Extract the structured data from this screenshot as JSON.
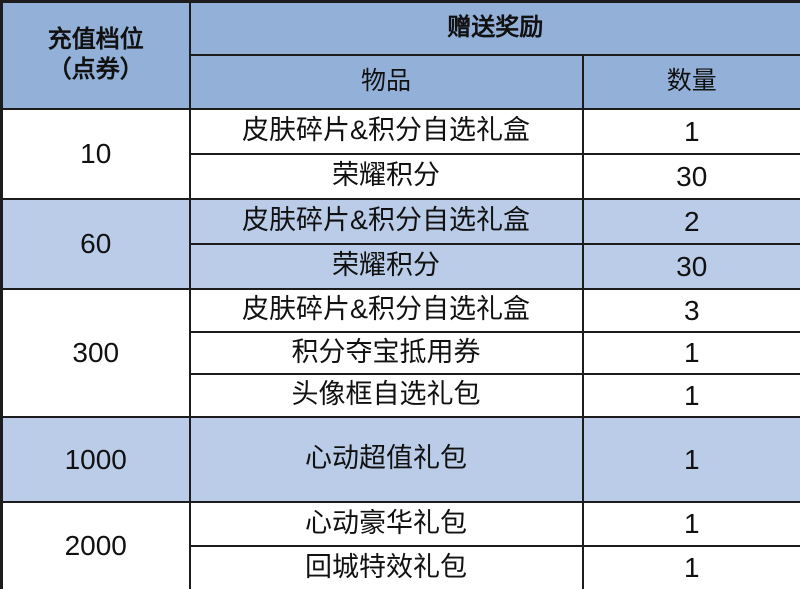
{
  "table": {
    "header": {
      "tier_line1": "充值档位",
      "tier_line2": "（点券）",
      "gift_header": "赠送奖励",
      "item_header": "物品",
      "qty_header": "数量"
    },
    "groups": [
      {
        "tier": "10",
        "highlight": false,
        "rewards": [
          {
            "item": "皮肤碎片&积分自选礼盒",
            "qty": "1"
          },
          {
            "item": "荣耀积分",
            "qty": "30"
          }
        ]
      },
      {
        "tier": "60",
        "highlight": true,
        "rewards": [
          {
            "item": "皮肤碎片&积分自选礼盒",
            "qty": "2"
          },
          {
            "item": "荣耀积分",
            "qty": "30"
          }
        ]
      },
      {
        "tier": "300",
        "highlight": false,
        "rewards": [
          {
            "item": "皮肤碎片&积分自选礼盒",
            "qty": "3"
          },
          {
            "item": "积分夺宝抵用券",
            "qty": "1"
          },
          {
            "item": "头像框自选礼包",
            "qty": "1"
          }
        ]
      },
      {
        "tier": "1000",
        "highlight": true,
        "rewards": [
          {
            "item": "心动超值礼包",
            "qty": "1"
          }
        ]
      },
      {
        "tier": "2000",
        "highlight": false,
        "rewards": [
          {
            "item": "心动豪华礼包",
            "qty": "1"
          },
          {
            "item": "回城特效礼包",
            "qty": "1"
          }
        ]
      }
    ],
    "colors": {
      "header_bg": "#93B1D8",
      "highlight_bg": "#BACCE8",
      "row_bg": "#FFFFFF",
      "border": "#1C1C1C",
      "text": "#111111"
    }
  }
}
